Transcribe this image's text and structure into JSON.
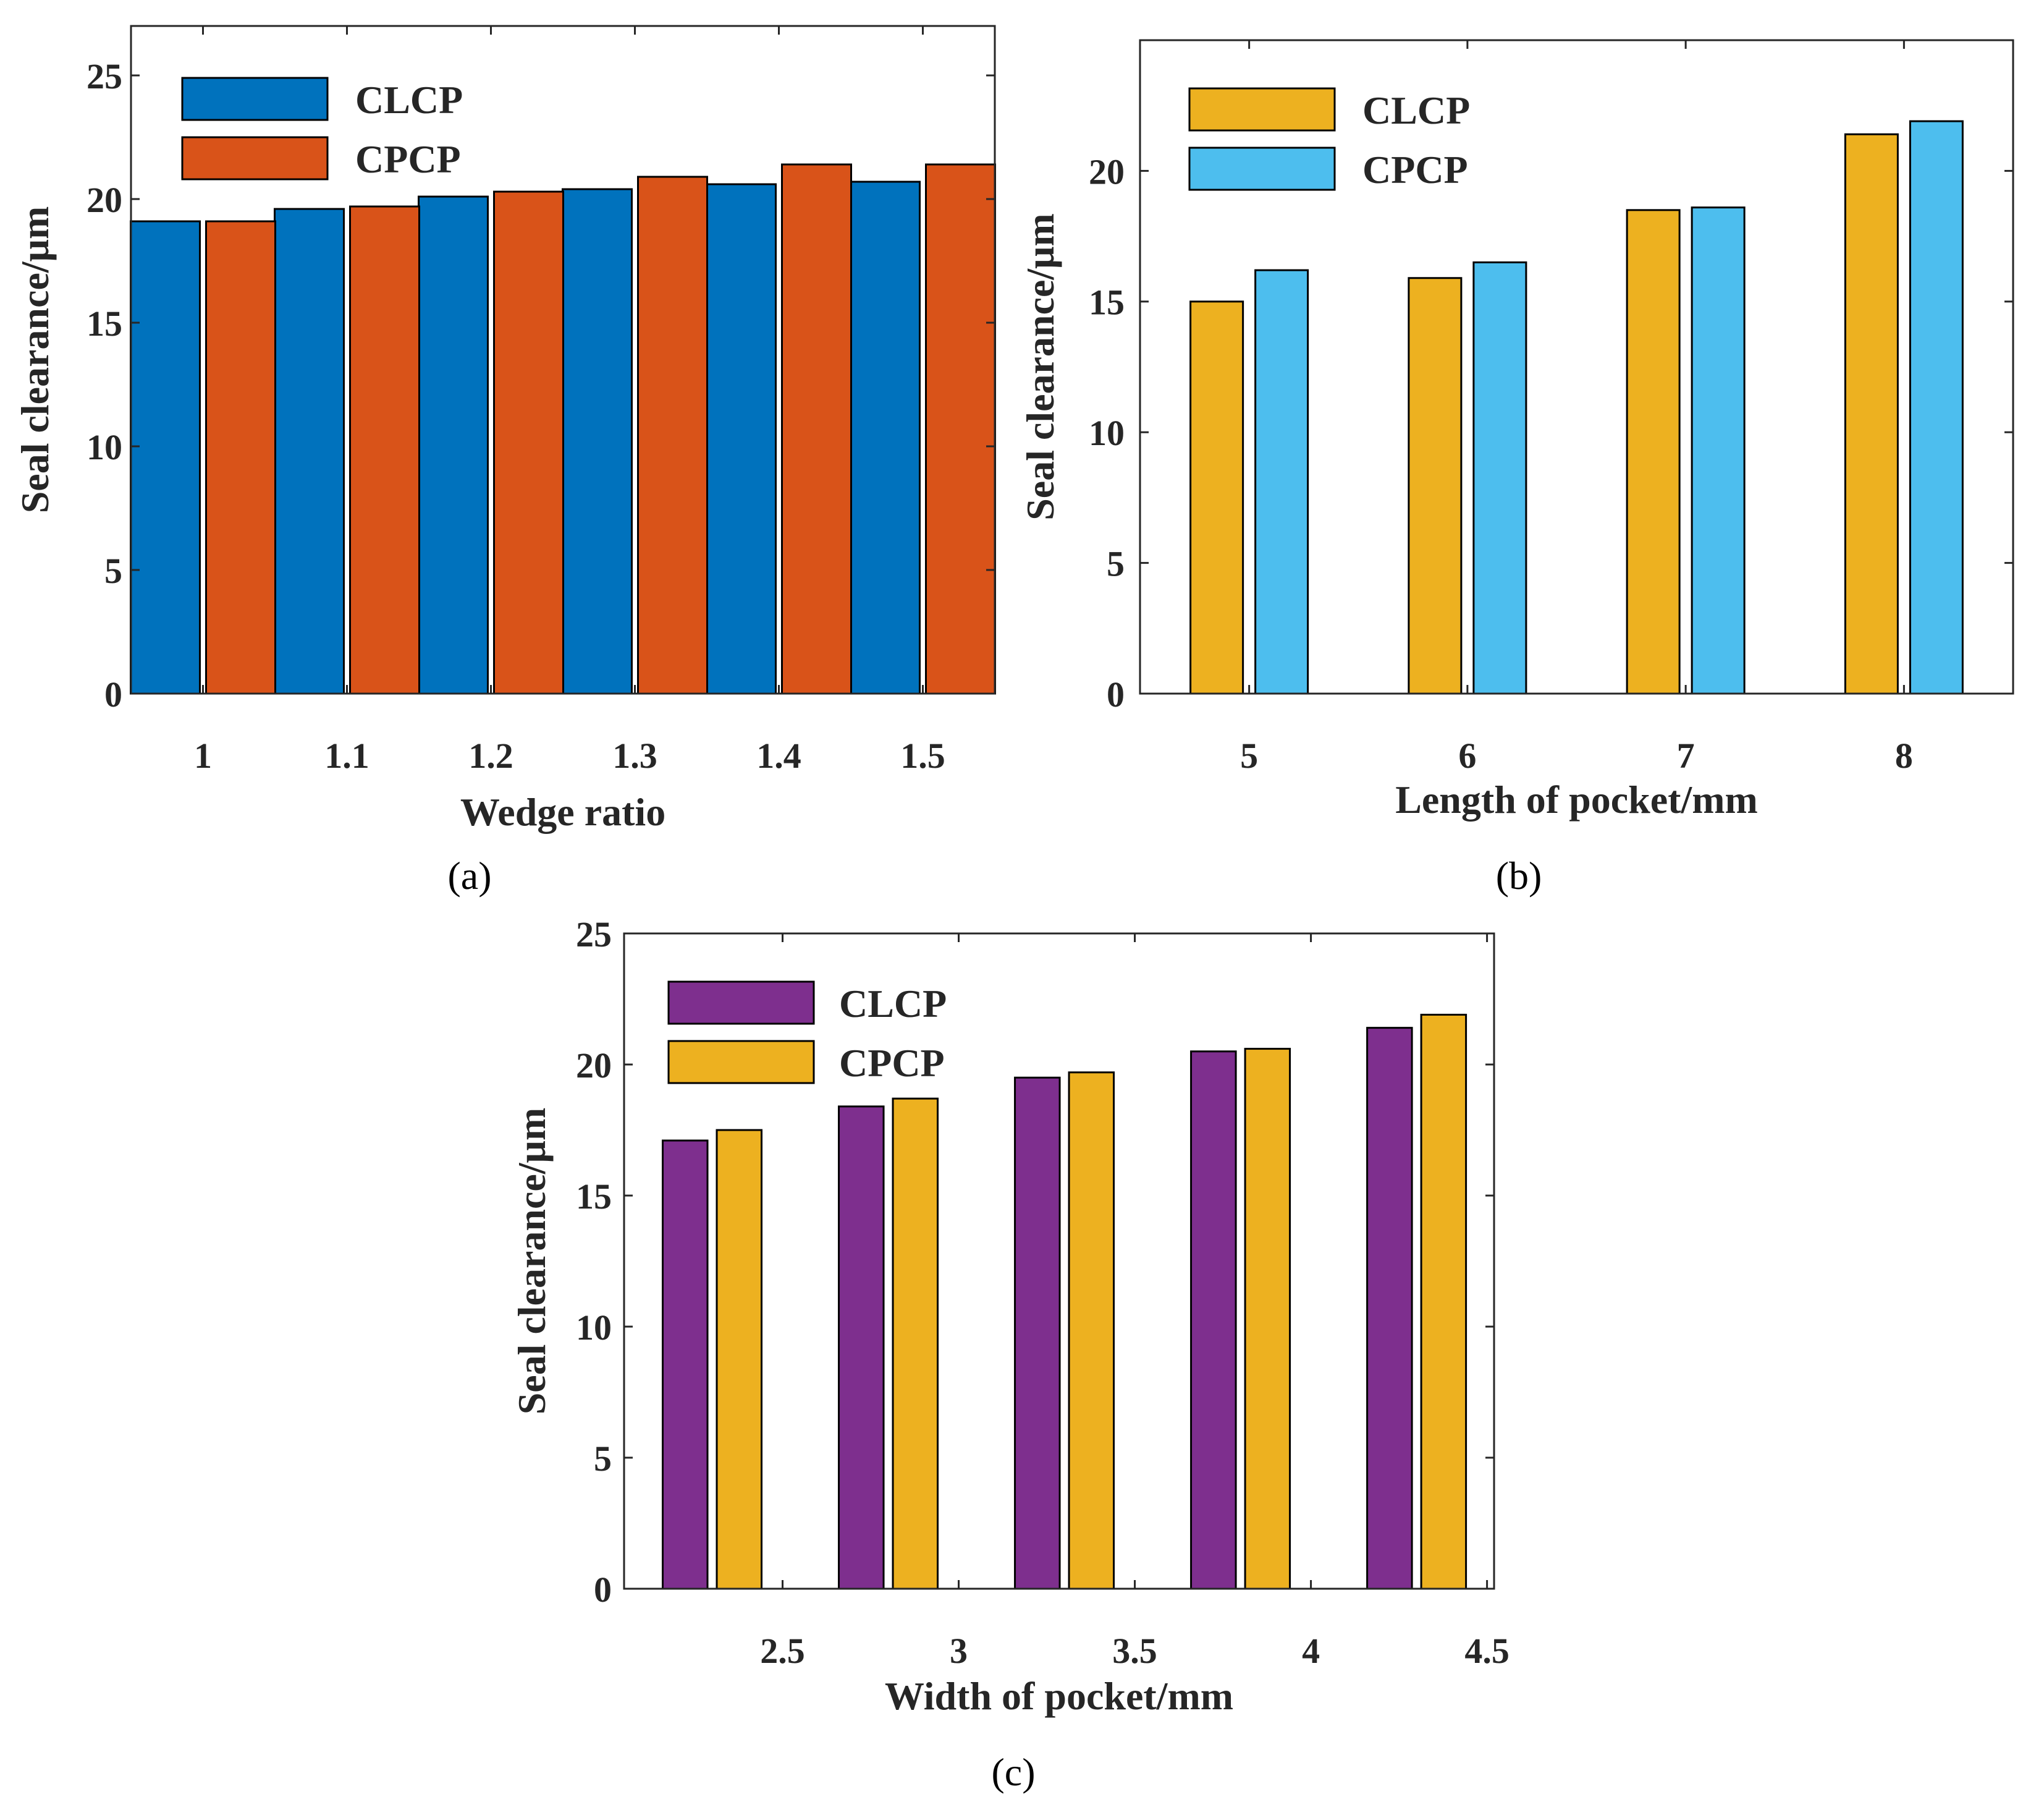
{
  "chart_data": [
    {
      "id": "a",
      "type": "bar",
      "caption": "(a)",
      "categories": [
        "1",
        "1.1",
        "1.2",
        "1.3",
        "1.4",
        "1.5"
      ],
      "series": [
        {
          "name": "CLCP",
          "color": "#0072BD",
          "values": [
            19.1,
            19.6,
            20.1,
            20.4,
            20.6,
            20.7
          ]
        },
        {
          "name": "CPCP",
          "color": "#D95319",
          "values": [
            19.1,
            19.7,
            20.3,
            20.9,
            21.4,
            21.4
          ]
        }
      ],
      "xlabel": "Wedge ratio",
      "ylabel": "Seal clearance/μm",
      "ylim": [
        0,
        27
      ],
      "yticks": [
        "0",
        "5",
        "10",
        "15",
        "20",
        "25"
      ],
      "legend": "top-left"
    },
    {
      "id": "b",
      "type": "bar",
      "caption": "(b)",
      "categories": [
        "5",
        "6",
        "7",
        "8"
      ],
      "series": [
        {
          "name": "CLCP",
          "color": "#EDB120",
          "values": [
            15.0,
            15.9,
            18.5,
            21.4
          ]
        },
        {
          "name": "CPCP",
          "color": "#4DBEEE",
          "values": [
            16.2,
            16.5,
            18.6,
            21.9
          ]
        }
      ],
      "xlabel": "Length of pocket/mm",
      "ylabel": "Seal clearance/μm",
      "ylim": [
        0,
        25
      ],
      "yticks": [
        "0",
        "5",
        "10",
        "15",
        "20"
      ],
      "legend": "top-left"
    },
    {
      "id": "c",
      "type": "bar",
      "caption": "(c)",
      "categories": [
        "2.3",
        "2.8",
        "3.3",
        "3.8",
        "4.3"
      ],
      "xticks": [
        "2.5",
        "3",
        "3.5",
        "4",
        "4.5"
      ],
      "series": [
        {
          "name": "CLCP",
          "color": "#7E2F8E",
          "values": [
            17.1,
            18.4,
            19.5,
            20.5,
            21.4
          ]
        },
        {
          "name": "CPCP",
          "color": "#EDB120",
          "values": [
            17.5,
            18.7,
            19.7,
            20.6,
            21.9
          ]
        }
      ],
      "xlabel": "Width of pocket/mm",
      "ylabel": "Seal clearance/μm",
      "ylim": [
        0,
        25
      ],
      "yticks": [
        "0",
        "5",
        "10",
        "15",
        "20",
        "25"
      ],
      "legend": "top-left"
    }
  ]
}
